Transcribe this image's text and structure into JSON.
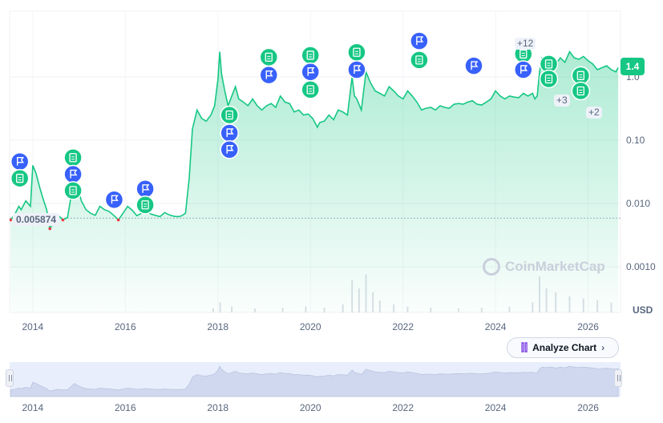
{
  "chart_data": {
    "type": "line",
    "title": "",
    "ylabel": "USD",
    "y_scale": "log",
    "ylim": [
      0.0002,
      5
    ],
    "xlim": [
      2013.5,
      2026.7
    ],
    "y_ticks": [
      {
        "label": "0.0010",
        "value": 0.001
      },
      {
        "label": "0.010",
        "value": 0.01
      },
      {
        "label": "0.10",
        "value": 0.1
      },
      {
        "label": "1.0",
        "value": 1.0
      }
    ],
    "x_ticks": [
      "2014",
      "2016",
      "2018",
      "2020",
      "2022",
      "2024",
      "2026"
    ],
    "x_tick_values": [
      2014,
      2016,
      2018,
      2020,
      2022,
      2024,
      2026
    ],
    "baseline": 0.005874,
    "baseline_label": "0.005874",
    "current_price": "1.4",
    "series": [
      {
        "x": [
          2013.52,
          2013.6,
          2013.7,
          2013.75,
          2013.85,
          2013.95,
          2014.0,
          2014.07,
          2014.15,
          2014.22,
          2014.3,
          2014.37,
          2014.45,
          2014.55,
          2014.65,
          2014.75,
          2014.82,
          2014.9,
          2014.97,
          2015.05,
          2015.15,
          2015.25,
          2015.35,
          2015.45,
          2015.55,
          2015.65,
          2015.75,
          2015.85,
          2015.95,
          2016.05,
          2016.15,
          2016.25,
          2016.35,
          2016.45,
          2016.55,
          2016.65,
          2016.75,
          2016.85,
          2016.95,
          2017.05,
          2017.15,
          2017.22,
          2017.3,
          2017.38,
          2017.45,
          2017.55,
          2017.65,
          2017.75,
          2017.85,
          2017.93,
          2018.0,
          2018.04,
          2018.08,
          2018.15,
          2018.22,
          2018.3,
          2018.38,
          2018.45,
          2018.55,
          2018.65,
          2018.75,
          2018.85,
          2018.95,
          2019.05,
          2019.15,
          2019.25,
          2019.35,
          2019.45,
          2019.55,
          2019.65,
          2019.75,
          2019.85,
          2019.95,
          2020.05,
          2020.15,
          2020.2,
          2020.3,
          2020.4,
          2020.5,
          2020.6,
          2020.7,
          2020.8,
          2020.9,
          2020.95,
          2021.0,
          2021.1,
          2021.2,
          2021.3,
          2021.4,
          2021.5,
          2021.6,
          2021.7,
          2021.8,
          2021.9,
          2022.0,
          2022.1,
          2022.2,
          2022.3,
          2022.4,
          2022.5,
          2022.6,
          2022.7,
          2022.8,
          2022.9,
          2023.0,
          2023.1,
          2023.2,
          2023.3,
          2023.4,
          2023.5,
          2023.6,
          2023.7,
          2023.8,
          2023.9,
          2024.0,
          2024.1,
          2024.2,
          2024.3,
          2024.4,
          2024.5,
          2024.6,
          2024.7,
          2024.8,
          2024.85,
          2024.9,
          2024.95,
          2025.0,
          2025.1,
          2025.2,
          2025.3,
          2025.4,
          2025.5,
          2025.6,
          2025.7,
          2025.8,
          2025.9,
          2026.0,
          2026.1,
          2026.2,
          2026.3,
          2026.4,
          2026.5,
          2026.6,
          2026.65
        ],
        "y": [
          0.0055,
          0.0065,
          0.009,
          0.008,
          0.011,
          0.009,
          0.04,
          0.03,
          0.018,
          0.012,
          0.008,
          0.004,
          0.005,
          0.0065,
          0.0055,
          0.006,
          0.012,
          0.03,
          0.018,
          0.011,
          0.008,
          0.007,
          0.0065,
          0.009,
          0.008,
          0.0075,
          0.0065,
          0.0055,
          0.007,
          0.009,
          0.0078,
          0.0064,
          0.007,
          0.008,
          0.0068,
          0.0065,
          0.0062,
          0.0072,
          0.0066,
          0.0063,
          0.0062,
          0.0064,
          0.007,
          0.025,
          0.15,
          0.3,
          0.22,
          0.2,
          0.25,
          0.35,
          0.9,
          2.5,
          1.1,
          0.6,
          0.35,
          0.5,
          0.7,
          0.45,
          0.4,
          0.35,
          0.45,
          0.35,
          0.3,
          0.35,
          0.38,
          0.33,
          0.5,
          0.4,
          0.38,
          0.28,
          0.3,
          0.25,
          0.26,
          0.22,
          0.16,
          0.19,
          0.2,
          0.25,
          0.21,
          0.3,
          0.28,
          0.25,
          1.0,
          0.5,
          0.45,
          0.3,
          1.2,
          0.8,
          0.6,
          0.55,
          0.5,
          0.7,
          0.6,
          0.5,
          0.45,
          0.6,
          0.5,
          0.4,
          0.3,
          0.32,
          0.33,
          0.3,
          0.35,
          0.33,
          0.32,
          0.37,
          0.38,
          0.37,
          0.4,
          0.42,
          0.37,
          0.36,
          0.4,
          0.45,
          0.6,
          0.5,
          0.45,
          0.5,
          0.48,
          0.47,
          0.55,
          0.5,
          0.55,
          0.45,
          0.5,
          1.2,
          2.0,
          1.8,
          2.1,
          1.6,
          2.0,
          1.7,
          2.5,
          2.0,
          1.9,
          2.1,
          1.8,
          1.6,
          1.3,
          1.4,
          1.5,
          1.3,
          1.2,
          1.4
        ]
      }
    ],
    "markers": [
      {
        "type": "flag",
        "x": 2013.72,
        "y": 0.046
      },
      {
        "type": "doc",
        "x": 2013.72,
        "y": 0.025
      },
      {
        "type": "doc",
        "x": 2014.87,
        "y": 0.053
      },
      {
        "type": "flag",
        "x": 2014.87,
        "y": 0.029
      },
      {
        "type": "doc",
        "x": 2014.87,
        "y": 0.016
      },
      {
        "type": "flag",
        "x": 2015.76,
        "y": 0.0115
      },
      {
        "type": "flag",
        "x": 2016.43,
        "y": 0.017
      },
      {
        "type": "doc",
        "x": 2016.43,
        "y": 0.0095
      },
      {
        "type": "doc",
        "x": 2018.25,
        "y": 0.25
      },
      {
        "type": "flag",
        "x": 2018.25,
        "y": 0.13
      },
      {
        "type": "flag",
        "x": 2018.25,
        "y": 0.071
      },
      {
        "type": "doc",
        "x": 2019.1,
        "y": 2.05
      },
      {
        "type": "flag",
        "x": 2019.1,
        "y": 1.07
      },
      {
        "type": "doc",
        "x": 2020.0,
        "y": 2.2
      },
      {
        "type": "flag",
        "x": 2020.0,
        "y": 1.2
      },
      {
        "type": "doc",
        "x": 2020.0,
        "y": 0.63
      },
      {
        "type": "doc",
        "x": 2021.0,
        "y": 2.45
      },
      {
        "type": "flag",
        "x": 2021.0,
        "y": 1.3
      },
      {
        "type": "flag",
        "x": 2022.35,
        "y": 3.7
      },
      {
        "type": "doc",
        "x": 2022.35,
        "y": 1.85
      },
      {
        "type": "flag",
        "x": 2023.53,
        "y": 1.5
      },
      {
        "type": "doc",
        "x": 2024.6,
        "y": 2.3
      },
      {
        "type": "flag",
        "x": 2024.6,
        "y": 1.3
      },
      {
        "type": "doc",
        "x": 2025.15,
        "y": 1.6
      },
      {
        "type": "doc",
        "x": 2025.15,
        "y": 0.93
      },
      {
        "type": "doc",
        "x": 2025.84,
        "y": 1.05
      },
      {
        "type": "doc",
        "x": 2025.84,
        "y": 0.6
      }
    ],
    "marker_counts": [
      "+12",
      "+3",
      "+2"
    ],
    "volume": {
      "x": [
        2017.9,
        2018.05,
        2018.3,
        2018.8,
        2019.4,
        2019.9,
        2020.3,
        2020.7,
        2020.9,
        2021.05,
        2021.2,
        2021.35,
        2021.5,
        2021.8,
        2022.1,
        2022.6,
        2023.2,
        2023.7,
        2024.3,
        2024.8,
        2024.95,
        2025.1,
        2025.3,
        2025.6,
        2025.9,
        2026.2,
        2026.5
      ],
      "v": [
        0.1,
        0.25,
        0.15,
        0.1,
        0.12,
        0.15,
        0.12,
        0.2,
        0.8,
        0.6,
        0.95,
        0.5,
        0.3,
        0.2,
        0.15,
        0.12,
        0.1,
        0.12,
        0.15,
        0.25,
        0.9,
        0.6,
        0.5,
        0.4,
        0.35,
        0.3,
        0.25
      ]
    }
  },
  "ui": {
    "price_tag": "1.4",
    "baseline_label": "0.005874",
    "analyze_label": "Analyze Chart",
    "watermark": "CoinMarketCap",
    "usd": "USD",
    "colors": {
      "up": "#16c784",
      "down": "#ea3943",
      "flag": "#3861fb",
      "doc": "#16c784"
    }
  }
}
